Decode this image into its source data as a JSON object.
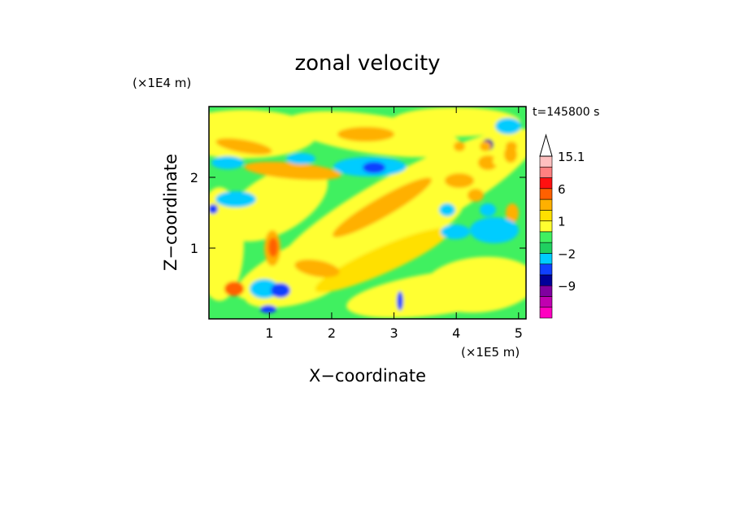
{
  "chart_data": {
    "type": "heatmap",
    "title": "zonal velocity",
    "xlabel": "X−coordinate",
    "ylabel": "Z−coordinate",
    "x_unit": "(×1E5 m)",
    "y_unit": "(×1E4 m)",
    "time_label": "t=145800 s",
    "xlim": [
      0.03,
      5.12
    ],
    "ylim": [
      0.0,
      3.0
    ],
    "x_ticks": [
      "1",
      "2",
      "3",
      "4",
      "5"
    ],
    "y_ticks": [
      "1",
      "2"
    ],
    "x_tick_values": [
      1,
      2,
      3,
      4,
      5
    ],
    "y_tick_values": [
      1,
      2
    ],
    "colorbar": {
      "labels": [
        "15.1",
        "6",
        "1",
        "−2",
        "−9"
      ],
      "label_values": [
        15.1,
        6,
        1,
        -2,
        -9
      ],
      "levels": [
        -15,
        -12,
        -9,
        -6,
        -3,
        -2,
        -1,
        0,
        1,
        2,
        3,
        6,
        9,
        12,
        15.1
      ],
      "colors": [
        "#ff00c0",
        "#c000b0",
        "#8000a0",
        "#000099",
        "#1040ff",
        "#00ccff",
        "#20d060",
        "#40f060",
        "#ffff30",
        "#ffe000",
        "#ffb000",
        "#ff6000",
        "#ff1010",
        "#ff8080",
        "#ffc0c0"
      ],
      "overflow_color": "#ffffff"
    },
    "background_color": "#40f060"
  }
}
